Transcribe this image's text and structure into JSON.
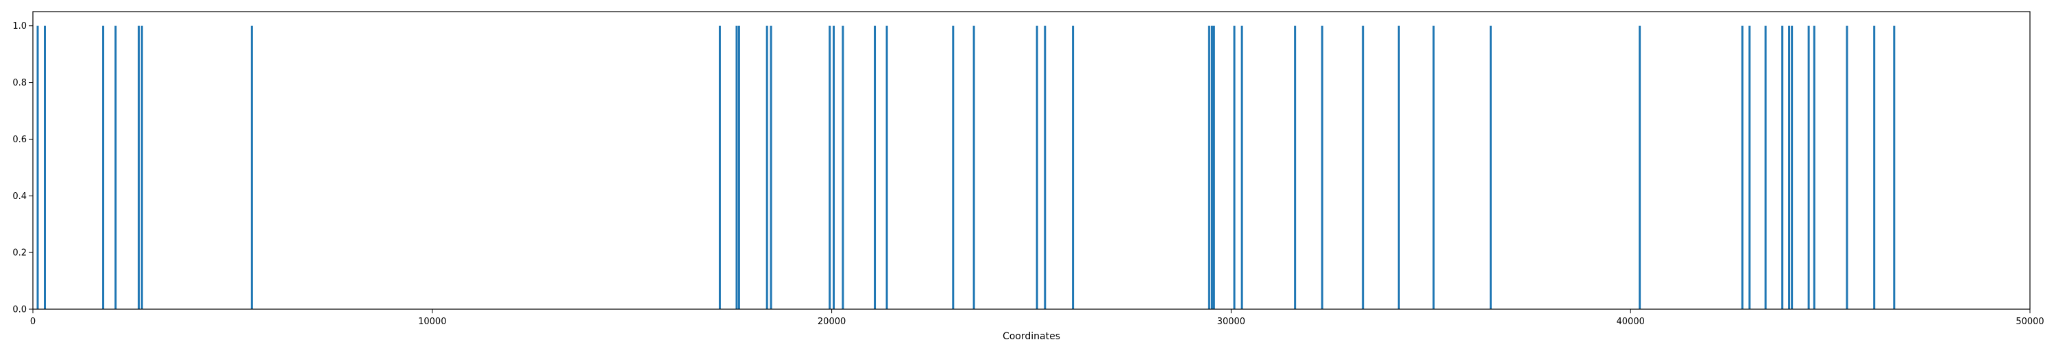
{
  "chart_data": {
    "type": "bar",
    "title": "",
    "xlabel": "Coordinates",
    "ylabel": "",
    "xlim": [
      0,
      50000
    ],
    "ylim": [
      0,
      1.05
    ],
    "xticks": [
      0,
      10000,
      20000,
      30000,
      40000,
      50000
    ],
    "yticks": [
      0.0,
      0.2,
      0.4,
      0.6,
      0.8,
      1.0
    ],
    "xtick_labels": [
      "0",
      "10000",
      "20000",
      "30000",
      "40000",
      "50000"
    ],
    "ytick_labels": [
      "0.0",
      "0.2",
      "0.4",
      "0.6",
      "0.8",
      "1.0"
    ],
    "grid": false,
    "legend": "none",
    "bar_color": "#1f77b4",
    "series": [
      {
        "x": [
          120,
          300,
          1760,
          2070,
          2650,
          2730,
          5480,
          17200,
          17620,
          17680,
          18380,
          18480,
          19950,
          20050,
          20280,
          21080,
          21380,
          23040,
          23560,
          25140,
          25340,
          26040,
          29450,
          29520,
          29570,
          30080,
          30270,
          31600,
          32280,
          33300,
          34200,
          35070,
          36500,
          40230,
          42800,
          42980,
          43380,
          43800,
          43970,
          44040,
          44460,
          44600,
          45420,
          46100,
          46600
        ],
        "values": [
          1,
          1,
          1,
          1,
          1,
          1,
          1,
          1,
          1,
          1,
          1,
          1,
          1,
          1,
          1,
          1,
          1,
          1,
          1,
          1,
          1,
          1,
          1,
          1,
          1,
          1,
          1,
          1,
          1,
          1,
          1,
          1,
          1,
          1,
          1,
          1,
          1,
          1,
          1,
          1,
          1,
          1,
          1,
          1,
          1
        ]
      }
    ]
  }
}
